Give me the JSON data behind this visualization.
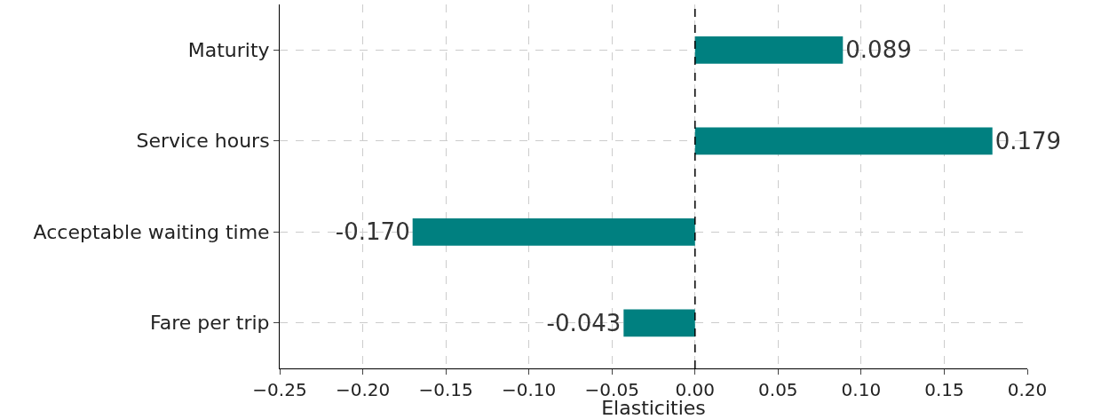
{
  "chart_data": {
    "type": "bar",
    "orientation": "horizontal",
    "xlabel": "Elasticities",
    "categories": [
      "Maturity",
      "Service hours",
      "Acceptable waiting time",
      "Fare per trip"
    ],
    "values": [
      0.089,
      0.179,
      -0.17,
      -0.043
    ],
    "value_labels": [
      "0.089",
      "0.179",
      "-0.170",
      "-0.043"
    ],
    "color": "#008080",
    "xlim": [
      -0.25,
      0.2
    ],
    "xticks": [
      {
        "value": -0.25,
        "label": "−0.25"
      },
      {
        "value": -0.2,
        "label": "−0.20"
      },
      {
        "value": -0.15,
        "label": "−0.15"
      },
      {
        "value": -0.1,
        "label": "−0.10"
      },
      {
        "value": -0.05,
        "label": "−0.05"
      },
      {
        "value": 0,
        "label": "0.00"
      },
      {
        "value": 0.05,
        "label": "0.05"
      },
      {
        "value": 0.1,
        "label": "0.10"
      },
      {
        "value": 0.15,
        "label": "0.15"
      },
      {
        "value": 0.2,
        "label": "0.20"
      }
    ],
    "ref_lines": [
      {
        "axis": "x",
        "value": 0,
        "color": "#000000",
        "line_style": "dashed"
      }
    ],
    "grid": true
  }
}
